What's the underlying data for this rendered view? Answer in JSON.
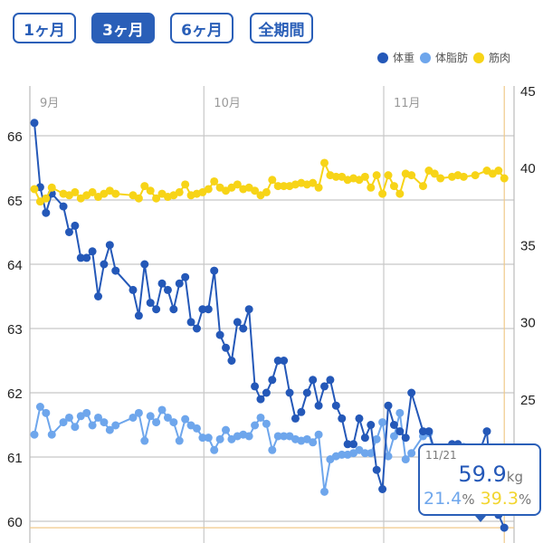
{
  "period_buttons": [
    {
      "label": "1ヶ月",
      "active": false
    },
    {
      "label": "3ヶ月",
      "active": true
    },
    {
      "label": "6ヶ月",
      "active": false
    },
    {
      "label": "全期間",
      "active": false
    }
  ],
  "legend": [
    {
      "label": "体重",
      "color": "#2458b8"
    },
    {
      "label": "体脂肪",
      "color": "#6ea6ec"
    },
    {
      "label": "筋肉",
      "color": "#f7d417"
    }
  ],
  "tooltip": {
    "date": "11/21",
    "weight": "59.9",
    "weight_unit": "kg",
    "fat": "21.4",
    "muscle": "39.3",
    "pct": "%"
  },
  "chart_data": {
    "type": "line",
    "x_month_labels": [
      {
        "label": "9月",
        "date": "9/1"
      },
      {
        "label": "10月",
        "date": "10/1"
      },
      {
        "label": "11月",
        "date": "11/1"
      }
    ],
    "y_left": {
      "ticks": [
        60,
        61,
        62,
        63,
        64,
        65,
        66
      ],
      "range": [
        59.8,
        66.8
      ]
    },
    "y_right": {
      "ticks": [
        25,
        30,
        35,
        40,
        45
      ],
      "range": [
        17.4,
        45.9
      ]
    },
    "grid": true,
    "legend": "top-right",
    "dates": [
      "9/1",
      "9/2",
      "9/3",
      "9/4",
      "9/6",
      "9/7",
      "9/8",
      "9/9",
      "9/10",
      "9/11",
      "9/12",
      "9/13",
      "9/14",
      "9/15",
      "9/18",
      "9/19",
      "9/20",
      "9/21",
      "9/22",
      "9/23",
      "9/24",
      "9/25",
      "9/26",
      "9/27",
      "9/28",
      "9/29",
      "9/30",
      "10/1",
      "10/2",
      "10/3",
      "10/4",
      "10/5",
      "10/6",
      "10/7",
      "10/8",
      "10/9",
      "10/10",
      "10/11",
      "10/12",
      "10/13",
      "10/14",
      "10/15",
      "10/16",
      "10/17",
      "10/18",
      "10/19",
      "10/20",
      "10/21",
      "10/22",
      "10/23",
      "10/24",
      "10/25",
      "10/26",
      "10/27",
      "10/28",
      "10/29",
      "10/30",
      "10/31",
      "11/1",
      "11/2",
      "11/3",
      "11/4",
      "11/5",
      "11/7",
      "11/8",
      "11/9",
      "11/10",
      "11/12",
      "11/13",
      "11/14",
      "11/16",
      "11/18",
      "11/19",
      "11/20",
      "11/21"
    ],
    "series": [
      {
        "name": "体重",
        "axis": "left",
        "color": "#2458b8",
        "values": [
          66.2,
          65.2,
          64.8,
          65.1,
          64.9,
          64.5,
          64.6,
          64.1,
          64.1,
          64.2,
          63.5,
          64.0,
          64.3,
          63.9,
          63.6,
          63.2,
          64.0,
          63.4,
          63.3,
          63.7,
          63.6,
          63.3,
          63.7,
          63.8,
          63.1,
          63.0,
          63.3,
          63.3,
          63.9,
          62.9,
          62.7,
          62.5,
          63.1,
          63.0,
          63.3,
          62.1,
          61.9,
          62.0,
          62.2,
          62.5,
          62.5,
          62.0,
          61.6,
          61.7,
          62.0,
          62.2,
          61.8,
          62.1,
          62.2,
          61.8,
          61.6,
          61.2,
          61.2,
          61.6,
          61.3,
          61.5,
          60.8,
          60.5,
          61.8,
          61.5,
          61.4,
          61.3,
          62.0,
          61.4,
          61.4,
          61.1,
          61.1,
          61.2,
          61.2,
          61.0,
          60.9,
          61.4,
          60.3,
          60.1,
          59.9
        ]
      },
      {
        "name": "体脂肪",
        "axis": "right",
        "color": "#6ea6ec",
        "values": [
          22.7,
          24.5,
          24.1,
          22.7,
          23.5,
          23.8,
          23.2,
          23.9,
          24.1,
          23.3,
          23.8,
          23.5,
          23.0,
          23.3,
          23.8,
          24.1,
          22.3,
          23.9,
          23.5,
          24.3,
          23.8,
          23.5,
          22.3,
          23.7,
          23.3,
          23.1,
          22.5,
          22.5,
          21.7,
          22.4,
          23.0,
          22.4,
          22.6,
          22.7,
          22.6,
          23.3,
          23.8,
          23.4,
          21.7,
          22.6,
          22.6,
          22.6,
          22.4,
          22.3,
          22.4,
          22.2,
          22.7,
          19.0,
          21.1,
          21.3,
          21.4,
          21.4,
          21.5,
          21.7,
          21.5,
          21.5,
          22.4,
          23.5,
          21.3,
          22.6,
          24.1,
          21.1,
          21.5,
          22.6,
          22.8,
          21.4,
          21.4,
          21.7,
          21.6,
          21.9,
          21.8,
          21.6,
          21.5,
          21.4,
          21.4
        ]
      },
      {
        "name": "筋肉",
        "axis": "right",
        "color": "#f7d417",
        "values": [
          38.6,
          37.8,
          38.0,
          38.7,
          38.3,
          38.2,
          38.4,
          38.0,
          38.2,
          38.4,
          38.1,
          38.3,
          38.5,
          38.3,
          38.2,
          38.0,
          38.8,
          38.5,
          38.0,
          38.3,
          38.1,
          38.2,
          38.4,
          38.9,
          38.2,
          38.3,
          38.4,
          38.6,
          39.1,
          38.7,
          38.5,
          38.7,
          38.9,
          38.6,
          38.7,
          38.5,
          38.2,
          38.4,
          39.2,
          38.8,
          38.8,
          38.8,
          38.9,
          39.0,
          38.9,
          39.0,
          38.7,
          40.3,
          39.5,
          39.4,
          39.4,
          39.2,
          39.3,
          39.2,
          39.4,
          38.7,
          39.5,
          38.3,
          39.5,
          38.8,
          38.3,
          39.6,
          39.5,
          38.8,
          39.8,
          39.6,
          39.3,
          39.4,
          39.5,
          39.4,
          39.5,
          39.8,
          39.6,
          39.8,
          39.3
        ]
      }
    ],
    "selected": {
      "date": "11/21",
      "weight": 59.9
    },
    "highlight_color": "#f0c98a"
  }
}
